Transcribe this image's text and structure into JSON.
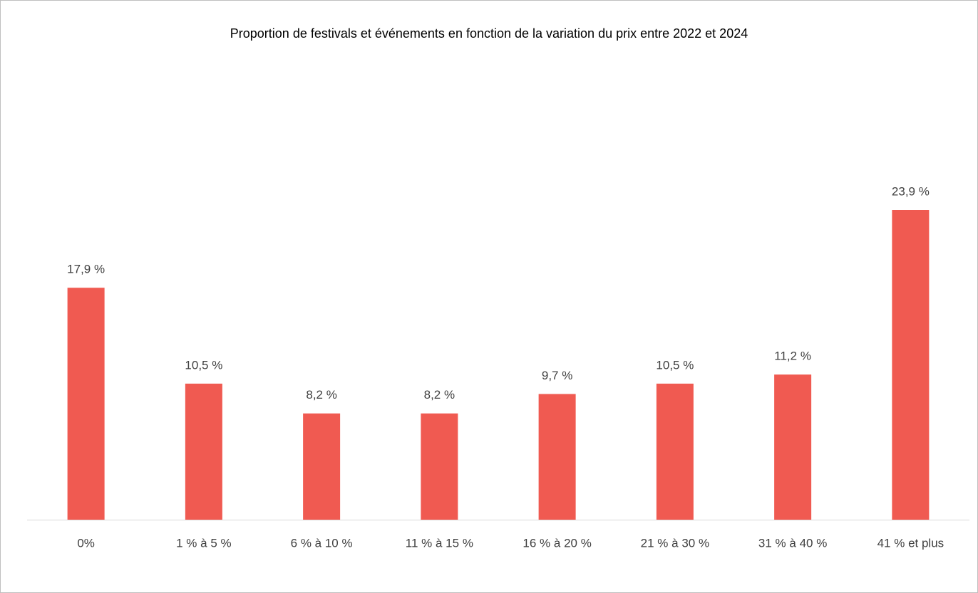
{
  "chart_data": {
    "type": "bar",
    "title": "Proportion de festivals et événements en fonction de la variation du prix entre 2022 et 2024",
    "categories": [
      "0%",
      "1 % à 5 %",
      "6 % à 10 %",
      "11 % à 15 %",
      "16 % à 20 %",
      "21 % à 30 %",
      "31 % à 40 %",
      "41 % et plus"
    ],
    "values": [
      17.9,
      10.5,
      8.2,
      8.2,
      9.7,
      10.5,
      11.2,
      23.9
    ],
    "value_labels": [
      "17,9 %",
      "10,5 %",
      "8,2 %",
      "8,2 %",
      "9,7 %",
      "10,5 %",
      "11,2 %",
      "23,9 %"
    ],
    "color": "#f05a51"
  }
}
